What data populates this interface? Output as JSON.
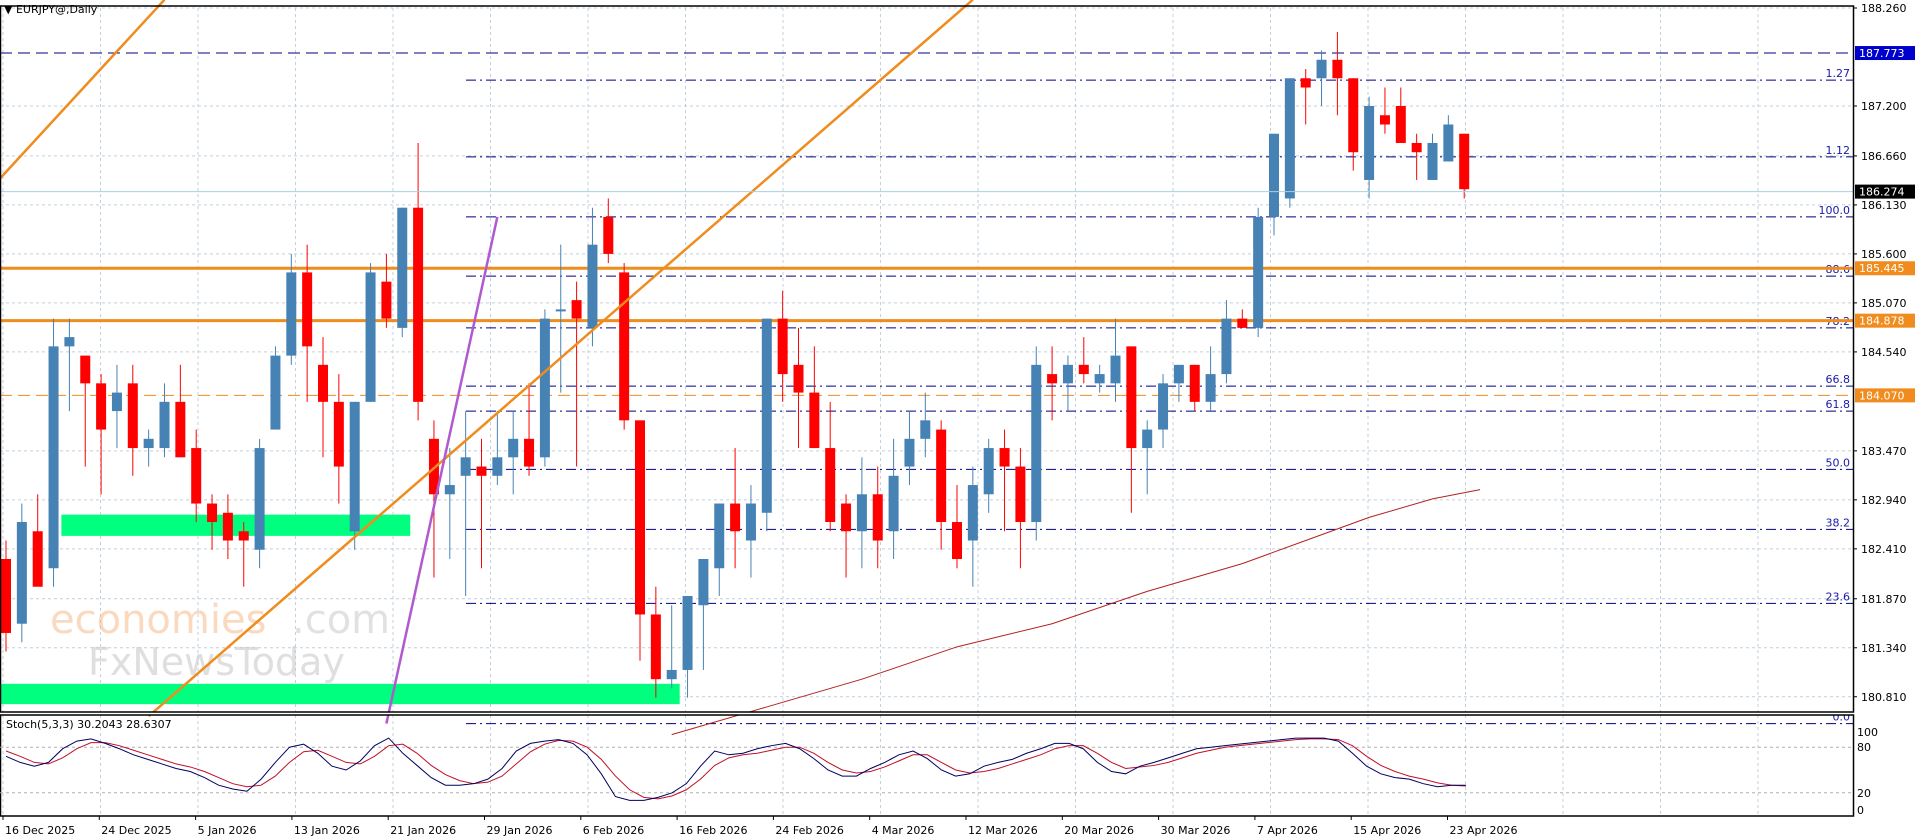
{
  "header": {
    "title": "EURJPY@,Daily",
    "menu_icon": "triangle-down-icon"
  },
  "indicator": {
    "label": "Stoch(5,3,3) 30.2043 28.6307",
    "levels": [
      100,
      80,
      20,
      0
    ]
  },
  "colors": {
    "bull": "#4682b4",
    "bear": "#ff0000",
    "grid": "#c0d0dc",
    "fib": "#000080",
    "fib_text": "#1a1aa6",
    "orange": "#f08c1e",
    "green_zone": "#00ff7f",
    "purple": "#b05ad0",
    "ma": "#b22222",
    "stoch_main": "#000060",
    "stoch_signal": "#c0102a",
    "price_marker_bg": "#000000",
    "blue_marker_bg": "#0000cc"
  },
  "price_axis": {
    "ticks": [
      "188.260",
      "187.200",
      "186.660",
      "186.130",
      "185.600",
      "185.070",
      "184.540",
      "183.470",
      "182.940",
      "182.410",
      "181.870",
      "181.340",
      "180.810"
    ],
    "tick_values": [
      188.26,
      187.2,
      186.66,
      186.13,
      185.6,
      185.07,
      184.54,
      183.47,
      182.94,
      182.41,
      181.87,
      181.34,
      180.81
    ],
    "markers": [
      {
        "label": "187.773",
        "value": 187.773,
        "style": "blue"
      },
      {
        "label": "186.274",
        "value": 186.274,
        "style": "black"
      },
      {
        "label": "185.445",
        "value": 185.445,
        "style": "orange"
      },
      {
        "label": "184.878",
        "value": 184.878,
        "style": "orange"
      },
      {
        "label": "184.070",
        "value": 184.07,
        "style": "orange"
      }
    ]
  },
  "time_axis": {
    "labels": [
      "16 Dec 2025",
      "24 Dec 2025",
      "5 Jan 2026",
      "13 Jan 2026",
      "21 Jan 2026",
      "29 Jan 2026",
      "6 Feb 2026",
      "16 Feb 2026",
      "24 Feb 2026",
      "4 Mar 2026",
      "12 Mar 2026",
      "20 Mar 2026",
      "30 Mar 2026",
      "7 Apr 2026",
      "15 Apr 2026",
      "23 Apr 2026"
    ],
    "label_bar_index": [
      0,
      6,
      12,
      18,
      24,
      30,
      36,
      42,
      48,
      54,
      60,
      66,
      72,
      78,
      84,
      90
    ]
  },
  "chart_data": {
    "type": "candlestick",
    "title": "EURJPY@,Daily",
    "ylim": [
      180.65,
      188.3
    ],
    "fib_levels": [
      {
        "label": "1.27",
        "value": 187.48
      },
      {
        "label": "1.12",
        "value": 186.65
      },
      {
        "label": "100.0",
        "value": 186.0
      },
      {
        "label": "88.6",
        "value": 185.36
      },
      {
        "label": "78.2",
        "value": 184.8
      },
      {
        "label": "66.8",
        "value": 184.17
      },
      {
        "label": "61.8",
        "value": 183.9
      },
      {
        "label": "50.0",
        "value": 183.27
      },
      {
        "label": "38.2",
        "value": 182.62
      },
      {
        "label": "23.6",
        "value": 181.82
      },
      {
        "label": "0.0",
        "value": 180.52
      }
    ],
    "horizontal_lines": [
      {
        "value": 187.773,
        "style": "dash",
        "color": "#000080"
      },
      {
        "value": 185.445,
        "style": "solid",
        "color": "#f08c1e"
      },
      {
        "value": 184.878,
        "style": "solid",
        "color": "#f08c1e"
      },
      {
        "value": 184.07,
        "style": "dash",
        "color": "#f08c1e"
      }
    ],
    "ohlc": [
      [
        182.3,
        182.5,
        181.3,
        181.5
      ],
      [
        181.6,
        182.9,
        181.4,
        182.7
      ],
      [
        182.6,
        183.0,
        182.1,
        182.0
      ],
      [
        182.2,
        184.9,
        182.0,
        184.6
      ],
      [
        184.6,
        184.9,
        183.9,
        184.7
      ],
      [
        184.5,
        184.5,
        183.3,
        184.2
      ],
      [
        184.2,
        184.3,
        183.0,
        183.7
      ],
      [
        183.9,
        184.4,
        183.5,
        184.1
      ],
      [
        184.2,
        184.4,
        183.2,
        183.5
      ],
      [
        183.5,
        183.7,
        183.3,
        183.6
      ],
      [
        183.5,
        184.2,
        183.4,
        184.0
      ],
      [
        184.0,
        184.4,
        183.5,
        183.4
      ],
      [
        183.5,
        183.7,
        182.7,
        182.9
      ],
      [
        182.9,
        183.0,
        182.4,
        182.7
      ],
      [
        182.8,
        183.0,
        182.3,
        182.5
      ],
      [
        182.6,
        182.7,
        182.0,
        182.5
      ],
      [
        182.4,
        183.6,
        182.2,
        183.5
      ],
      [
        183.7,
        184.6,
        183.7,
        184.5
      ],
      [
        184.5,
        185.6,
        184.4,
        185.4
      ],
      [
        185.4,
        185.7,
        184.0,
        184.6
      ],
      [
        184.4,
        184.7,
        183.4,
        184.0
      ],
      [
        184.0,
        184.3,
        182.9,
        183.3
      ],
      [
        182.6,
        184.0,
        182.4,
        184.0
      ],
      [
        184.0,
        185.5,
        184.0,
        185.4
      ],
      [
        185.3,
        185.6,
        184.8,
        184.9
      ],
      [
        184.8,
        186.1,
        184.7,
        186.1
      ],
      [
        186.1,
        186.8,
        183.8,
        184.0
      ],
      [
        183.6,
        183.8,
        182.1,
        183.0
      ],
      [
        183.0,
        183.5,
        182.3,
        183.1
      ],
      [
        183.2,
        183.9,
        181.9,
        183.4
      ],
      [
        183.3,
        183.6,
        182.2,
        183.2
      ],
      [
        183.2,
        183.9,
        183.1,
        183.4
      ],
      [
        183.4,
        183.9,
        183.0,
        183.6
      ],
      [
        183.6,
        184.2,
        183.2,
        183.3
      ],
      [
        183.4,
        185.0,
        183.3,
        184.9
      ],
      [
        185.0,
        185.7,
        184.1,
        185.0
      ],
      [
        185.1,
        185.3,
        183.3,
        184.9
      ],
      [
        184.8,
        186.1,
        184.6,
        185.7
      ],
      [
        186.0,
        186.2,
        185.5,
        185.6
      ],
      [
        185.4,
        185.5,
        183.7,
        183.8
      ],
      [
        183.8,
        183.8,
        181.2,
        181.7
      ],
      [
        181.7,
        182.0,
        180.8,
        181.0
      ],
      [
        181.0,
        181.8,
        180.9,
        181.1
      ],
      [
        181.1,
        181.8,
        180.8,
        181.9
      ],
      [
        181.8,
        182.1,
        181.1,
        182.3
      ],
      [
        182.2,
        182.4,
        181.9,
        182.9
      ],
      [
        182.9,
        183.5,
        182.2,
        182.6
      ],
      [
        182.5,
        183.1,
        182.1,
        182.9
      ],
      [
        182.8,
        184.9,
        182.6,
        184.9
      ],
      [
        184.9,
        185.2,
        184.0,
        184.3
      ],
      [
        184.4,
        184.8,
        183.5,
        184.1
      ],
      [
        184.1,
        184.6,
        183.5,
        183.5
      ],
      [
        183.5,
        184.0,
        182.6,
        182.7
      ],
      [
        182.9,
        183.0,
        182.1,
        182.6
      ],
      [
        182.6,
        183.4,
        182.2,
        183.0
      ],
      [
        183.0,
        183.3,
        182.2,
        182.5
      ],
      [
        182.6,
        183.6,
        182.3,
        183.2
      ],
      [
        183.3,
        183.9,
        183.1,
        183.6
      ],
      [
        183.6,
        184.1,
        183.4,
        183.8
      ],
      [
        183.7,
        183.8,
        182.4,
        182.7
      ],
      [
        182.7,
        183.1,
        182.2,
        182.3
      ],
      [
        182.5,
        183.3,
        182.0,
        183.1
      ],
      [
        183.0,
        183.6,
        182.8,
        183.5
      ],
      [
        183.5,
        183.7,
        182.6,
        183.3
      ],
      [
        183.3,
        183.5,
        182.2,
        182.7
      ],
      [
        182.7,
        184.6,
        182.5,
        184.4
      ],
      [
        184.3,
        184.6,
        183.8,
        184.2
      ],
      [
        184.2,
        184.5,
        183.9,
        184.4
      ],
      [
        184.4,
        184.7,
        184.2,
        184.3
      ],
      [
        184.2,
        184.4,
        184.1,
        184.3
      ],
      [
        184.2,
        184.9,
        184.0,
        184.5
      ],
      [
        184.6,
        184.6,
        182.8,
        183.5
      ],
      [
        183.5,
        183.8,
        183.0,
        183.7
      ],
      [
        183.7,
        184.3,
        183.5,
        184.2
      ],
      [
        184.2,
        184.4,
        184.0,
        184.4
      ],
      [
        184.4,
        184.4,
        183.9,
        184.0
      ],
      [
        184.0,
        184.6,
        183.9,
        184.3
      ],
      [
        184.3,
        185.1,
        184.2,
        184.9
      ],
      [
        184.9,
        185.0,
        184.8,
        184.8
      ],
      [
        184.8,
        186.1,
        184.7,
        186.0
      ],
      [
        186.0,
        186.9,
        185.8,
        186.9
      ],
      [
        186.2,
        187.5,
        186.1,
        187.5
      ],
      [
        187.5,
        187.6,
        187.0,
        187.4
      ],
      [
        187.5,
        187.8,
        187.2,
        187.7
      ],
      [
        187.7,
        188.0,
        187.1,
        187.5
      ],
      [
        187.5,
        187.5,
        186.5,
        186.7
      ],
      [
        186.4,
        187.3,
        186.2,
        187.2
      ],
      [
        187.1,
        187.4,
        186.9,
        187.0
      ],
      [
        187.2,
        187.4,
        186.8,
        186.8
      ],
      [
        186.8,
        186.9,
        186.4,
        186.7
      ],
      [
        186.4,
        186.9,
        186.4,
        186.8
      ],
      [
        186.6,
        187.1,
        186.6,
        187.0
      ],
      [
        186.9,
        186.9,
        186.2,
        186.3
      ]
    ],
    "moving_average": [
      [
        42,
        180.4
      ],
      [
        48,
        180.7
      ],
      [
        54,
        181.0
      ],
      [
        60,
        181.35
      ],
      [
        66,
        181.6
      ],
      [
        72,
        181.95
      ],
      [
        78,
        182.25
      ],
      [
        82,
        182.5
      ],
      [
        86,
        182.75
      ],
      [
        90,
        182.95
      ],
      [
        93,
        183.05
      ]
    ],
    "stochastic": {
      "main": [
        68,
        60,
        55,
        60,
        78,
        88,
        91,
        85,
        78,
        70,
        64,
        58,
        52,
        48,
        40,
        30,
        25,
        22,
        38,
        60,
        80,
        84,
        72,
        55,
        50,
        62,
        82,
        92,
        72,
        56,
        40,
        30,
        30,
        32,
        38,
        52,
        75,
        85,
        88,
        90,
        85,
        70,
        45,
        15,
        10,
        10,
        14,
        20,
        32,
        55,
        75,
        70,
        72,
        78,
        82,
        85,
        78,
        65,
        50,
        42,
        42,
        52,
        60,
        70,
        75,
        65,
        50,
        42,
        45,
        55,
        60,
        64,
        72,
        78,
        85,
        85,
        78,
        60,
        48,
        45,
        55,
        60,
        66,
        72,
        78,
        80,
        82,
        84,
        86,
        88,
        90,
        92,
        92,
        92,
        88,
        72,
        55,
        45,
        40,
        38,
        32,
        28,
        30,
        30
      ],
      "signal": [
        75,
        68,
        60,
        58,
        66,
        78,
        86,
        86,
        82,
        76,
        70,
        64,
        58,
        54,
        48,
        40,
        32,
        28,
        30,
        42,
        60,
        74,
        76,
        68,
        60,
        58,
        68,
        82,
        84,
        72,
        56,
        44,
        36,
        32,
        34,
        42,
        58,
        74,
        84,
        89,
        88,
        80,
        64,
        42,
        24,
        14,
        12,
        16,
        24,
        38,
        56,
        66,
        70,
        72,
        76,
        80,
        80,
        72,
        60,
        50,
        46,
        48,
        54,
        62,
        70,
        70,
        60,
        50,
        46,
        48,
        52,
        58,
        64,
        70,
        78,
        82,
        82,
        72,
        60,
        52,
        54,
        56,
        60,
        66,
        72,
        76,
        80,
        82,
        84,
        86,
        88,
        90,
        91,
        91,
        90,
        82,
        68,
        56,
        48,
        42,
        38,
        33,
        30,
        29
      ]
    },
    "trendlines": [
      {
        "from": [
          -1,
          186.3
        ],
        "to": [
          10,
          188.35
        ],
        "color": "#f08c1e"
      },
      {
        "from": [
          9,
          180.6
        ],
        "to": [
          61,
          188.35
        ],
        "color": "#f08c1e"
      },
      {
        "from": [
          24,
          180.52
        ],
        "to": [
          31,
          186.0
        ],
        "color": "#b05ad0"
      }
    ],
    "zones": [
      {
        "from_bar": 4,
        "to_bar": 25,
        "low": 182.55,
        "high": 182.78,
        "color": "#00ff7f"
      },
      {
        "from_bar": 0,
        "to_bar": 42,
        "low": 180.73,
        "high": 180.95,
        "color": "#00ff7f"
      }
    ]
  },
  "watermark": {
    "line1a": "economies",
    "line1b": ".com",
    "line2": "FxNewsToday"
  }
}
